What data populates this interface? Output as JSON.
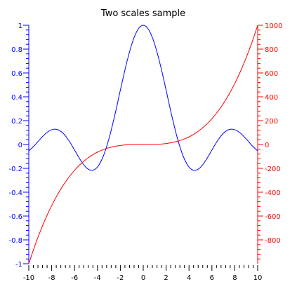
{
  "chart_data": {
    "type": "line",
    "title": "Two scales sample",
    "x": {
      "range": [
        -10,
        10
      ],
      "ticks": [
        -10,
        -8,
        -6,
        -4,
        -2,
        0,
        2,
        4,
        6,
        8,
        10
      ],
      "tick_labels": [
        "-10",
        "-8",
        "-6",
        "-4",
        "-2",
        "0",
        "2",
        "4",
        "6",
        "8",
        "10"
      ],
      "minor_ticks_per_major": 5
    },
    "y_left": {
      "range": [
        -1,
        1
      ],
      "ticks": [
        -1,
        -0.8,
        -0.6,
        -0.4,
        -0.2,
        0,
        0.2,
        0.4,
        0.6,
        0.8,
        1
      ],
      "tick_labels": [
        "-1",
        "-0.8",
        "-0.6",
        "-0.4",
        "-0.2",
        "0",
        "0.2",
        "0.4",
        "0.6",
        "0.8",
        "1"
      ],
      "color": "#0000ff",
      "minor_ticks_per_major": 5
    },
    "y_right": {
      "range": [
        -1000,
        1000
      ],
      "ticks": [
        -800,
        -600,
        -400,
        -200,
        0,
        200,
        400,
        600,
        800,
        1000
      ],
      "tick_labels": [
        "-800",
        "-600",
        "-400",
        "-200",
        "0",
        "200",
        "400",
        "600",
        "800",
        "1000"
      ],
      "color": "#ff0000",
      "minor_ticks_per_major": 5
    },
    "grid": false,
    "series": [
      {
        "axis": "left",
        "color": "#0000ff",
        "points": [
          [
            -10,
            -0.054
          ],
          [
            -9.5,
            -0.008
          ],
          [
            -9,
            0.046
          ],
          [
            -8.5,
            0.094
          ],
          [
            -8,
            0.124
          ],
          [
            -7.5,
            0.125
          ],
          [
            -7,
            0.094
          ],
          [
            -6.5,
            0.033
          ],
          [
            -6,
            -0.047
          ],
          [
            -5.5,
            -0.128
          ],
          [
            -5,
            -0.192
          ],
          [
            -4.5,
            -0.217
          ],
          [
            -4,
            -0.189
          ],
          [
            -3.5,
            -0.1
          ],
          [
            -3,
            0.047
          ],
          [
            -2.5,
            0.239
          ],
          [
            -2,
            0.455
          ],
          [
            -1.5,
            0.665
          ],
          [
            -1,
            0.841
          ],
          [
            -0.5,
            0.959
          ],
          [
            0,
            1
          ],
          [
            0.5,
            0.959
          ],
          [
            1,
            0.841
          ],
          [
            1.5,
            0.665
          ],
          [
            2,
            0.455
          ],
          [
            2.5,
            0.239
          ],
          [
            3,
            0.047
          ],
          [
            3.5,
            -0.1
          ],
          [
            4,
            -0.189
          ],
          [
            4.5,
            -0.217
          ],
          [
            5,
            -0.192
          ],
          [
            5.5,
            -0.128
          ],
          [
            6,
            -0.047
          ],
          [
            6.5,
            0.033
          ],
          [
            7,
            0.094
          ],
          [
            7.5,
            0.125
          ],
          [
            8,
            0.124
          ],
          [
            8.5,
            0.094
          ],
          [
            9,
            0.046
          ],
          [
            9.5,
            -0.008
          ],
          [
            10,
            -0.054
          ]
        ]
      },
      {
        "axis": "right",
        "color": "#ff0000",
        "points": [
          [
            -10,
            -1000
          ],
          [
            -9.5,
            -857
          ],
          [
            -9,
            -729
          ],
          [
            -8.5,
            -614
          ],
          [
            -8,
            -512
          ],
          [
            -7.5,
            -422
          ],
          [
            -7,
            -343
          ],
          [
            -6.5,
            -275
          ],
          [
            -6,
            -216
          ],
          [
            -5.5,
            -166
          ],
          [
            -5,
            -125
          ],
          [
            -4.5,
            -91
          ],
          [
            -4,
            -64
          ],
          [
            -3.5,
            -43
          ],
          [
            -3,
            -27
          ],
          [
            -2.5,
            -16
          ],
          [
            -2,
            -8
          ],
          [
            -1.5,
            -3
          ],
          [
            -1,
            -1
          ],
          [
            -0.5,
            0
          ],
          [
            0,
            0
          ],
          [
            0.5,
            0
          ],
          [
            1,
            1
          ],
          [
            1.5,
            3
          ],
          [
            2,
            8
          ],
          [
            2.5,
            16
          ],
          [
            3,
            27
          ],
          [
            3.5,
            43
          ],
          [
            4,
            64
          ],
          [
            4.5,
            91
          ],
          [
            5,
            125
          ],
          [
            5.5,
            166
          ],
          [
            6,
            216
          ],
          [
            6.5,
            275
          ],
          [
            7,
            343
          ],
          [
            7.5,
            422
          ],
          [
            8,
            512
          ],
          [
            8.5,
            614
          ],
          [
            9,
            729
          ],
          [
            9.5,
            857
          ],
          [
            10,
            1000
          ]
        ]
      }
    ]
  }
}
